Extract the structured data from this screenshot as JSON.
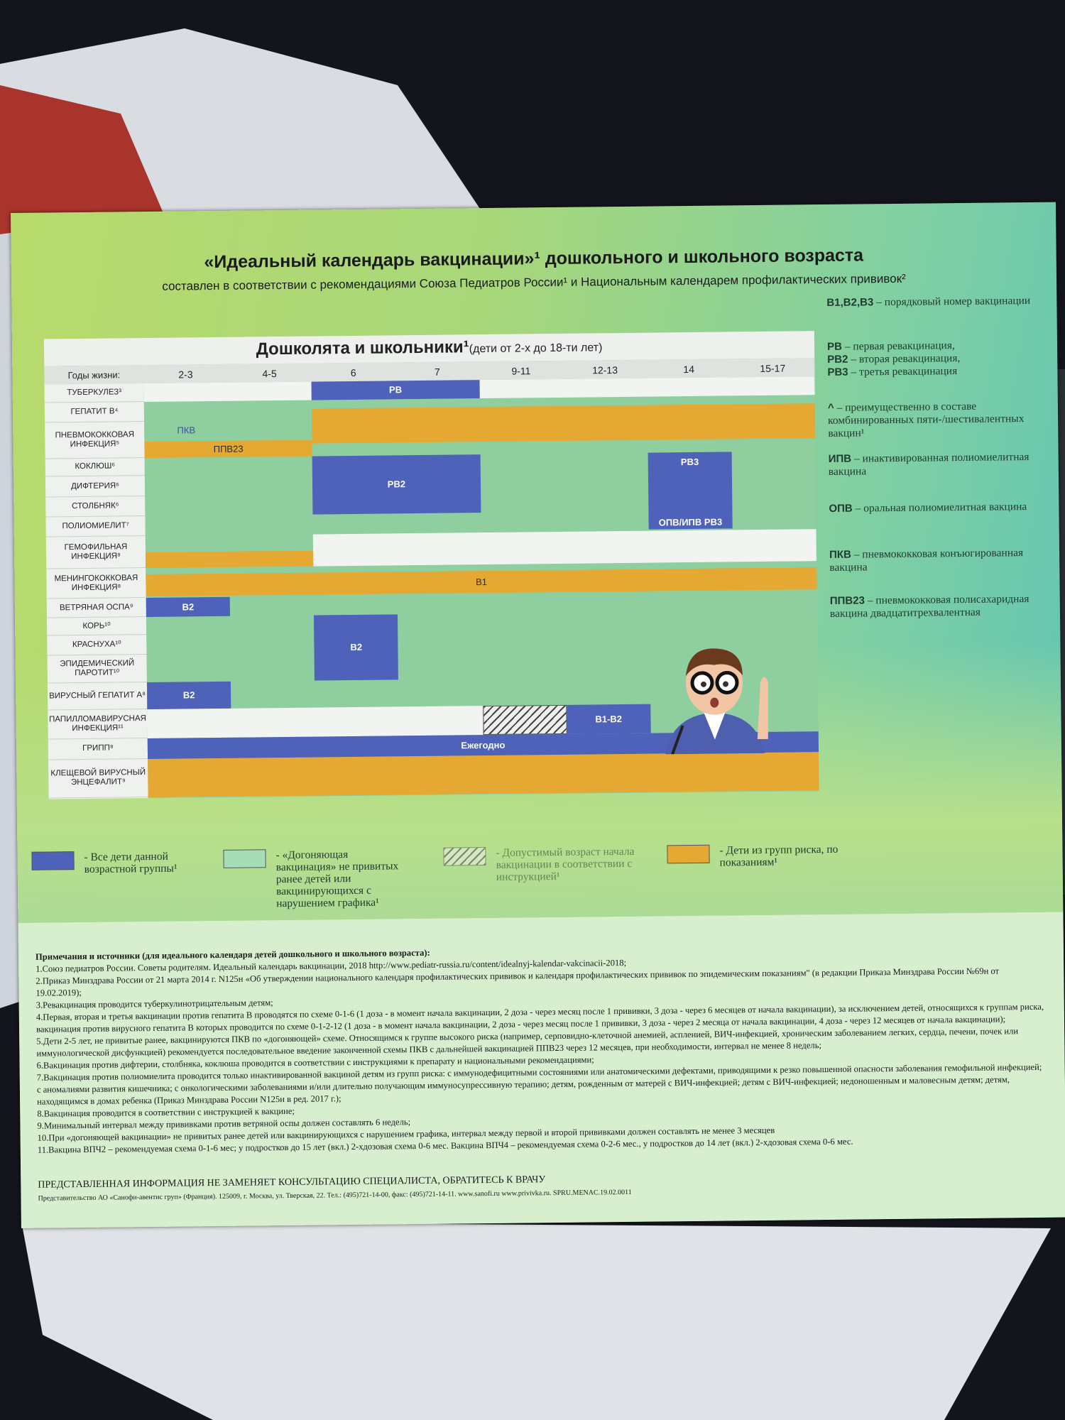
{
  "header": {
    "title": "«Идеальный календарь вакцинации»¹ дошкольного и школьного возраста",
    "subtitle": "составлен в соответствии с рекомендациями Союза Педиатров России¹ и Национальным календарем профилактических прививок²"
  },
  "table": {
    "heading": "Дошколята и школьники¹",
    "heading_note": "(дети от 2-х до 18-ти лет)",
    "age_label": "Годы жизни:",
    "ages": [
      "2-3",
      "4-5",
      "6",
      "7",
      "9-11",
      "12-13",
      "14",
      "15-17"
    ],
    "rows": [
      "ТУБЕРКУЛЕЗ³",
      "ГЕПАТИТ В⁴",
      "ПНЕВМОКОККОВАЯ ИНФЕКЦИЯ⁵",
      "КОКЛЮШ⁶",
      "ДИФТЕРИЯ⁶",
      "СТОЛБНЯК⁶",
      "ПОЛИОМИЕЛИТ⁷",
      "ГЕМОФИЛЬНАЯ ИНФЕКЦИЯ⁸",
      "МЕНИНГОКОККОВАЯ ИНФЕКЦИЯ⁸",
      "ВЕТРЯНАЯ ОСПА⁹",
      "КОРЬ¹⁰",
      "КРАСНУХА¹⁰",
      "ЭПИДЕМИЧЕСКИЙ ПАРОТИТ¹⁰",
      "ВИРУСНЫЙ ГЕПАТИТ А⁸",
      "ПАПИЛЛОМАВИРУСНАЯ ИНФЕКЦИЯ¹¹",
      "ГРИПП⁸",
      "КЛЕЩЕВОЙ ВИРУСНЫЙ ЭНЦЕФАЛИТ⁹"
    ],
    "bars": [
      "РВ",
      "ПКВ",
      "ППВ23",
      "РВ2",
      "РВ3",
      "ОПВ/ИПВ РВ3",
      "В1",
      "В2",
      "В2",
      "В2",
      "В1-В2",
      "Ежегодно"
    ]
  },
  "side_legend": [
    {
      "term": "В1,В2,В3",
      "desc": " – порядковый номер вакцинации"
    },
    {
      "term": "РВ",
      "desc": " – первая ревакцинация,"
    },
    {
      "term": "РВ2",
      "desc": " – вторая ревакцинация,"
    },
    {
      "term": "РВ3",
      "desc": " – третья ревакцинация"
    },
    {
      "term": "^",
      "desc": " – преимущественно в составе комбинированных пяти-/шестивалентных вакцин¹"
    },
    {
      "term": "ИПВ",
      "desc": " – инактивированная полиомиелитная вакцина"
    },
    {
      "term": "ОПВ",
      "desc": " – оральная полиомиелитная вакцина"
    },
    {
      "term": "ПКВ",
      "desc": " – пневмококковая конъюгированная вакцина"
    },
    {
      "term": "ППВ23",
      "desc": " – пневмококковая полисахаридная вакцина двадцатитрехвалентная"
    }
  ],
  "legend": [
    "- Все дети данной возрастной группы¹",
    "- «Догоняющая вакцинация» не привитых ранее детей или вакцинирующихся с нарушением графика¹",
    "- Допустимый возраст начала вакцинации в соответствии с инструкцией¹",
    "- Дети из групп риска, по показаниям¹"
  ],
  "notes": {
    "title": "Примечания и источники (для идеального календаря детей дошкольного и школьного возраста):",
    "items": [
      "1.Союз педиатров России. Советы родителям. Идеальный календарь вакцинации, 2018 http://www.pediatr-russia.ru/content/idealnyj-kalendar-vakcinacii-2018;",
      "2.Приказ Минздрава России от 21 марта 2014 г. N125н «Об утверждении национального календаря профилактических прививок и календаря профилактических прививок по эпидемическим показаниям\" (в редакции Приказа Минздрава России №69н от 19.02.2019);",
      "3.Ревакцинация проводится туберкулинотрицательным детям;",
      "4.Первая, вторая и третья вакцинации против гепатита В проводятся по схеме 0-1-6 (1 доза - в момент начала вакцинации, 2 доза - через месяц после 1 прививки, 3 доза - через 6 месяцев от начала вакцинации), за исключением детей, относящихся к группам риска, вакцинация против вирусного гепатита В которых проводится по схеме 0-1-2-12 (1 доза - в момент начала вакцинации, 2 доза - через месяц после 1 прививки, 3 доза - через 2 месяца от начала вакцинации, 4 доза - через 12 месяцев от начала вакцинации);",
      "5.Дети 2-5 лет, не привитые ранее, вакцинируются ПКВ по «догоняющей» схеме. Относящимся к группе высокого риска (например, серповидно-клеточной анемией, аспленией, ВИЧ-инфекцией, хроническим заболеванием легких, сердца, печени, почек или иммунологической дисфункцией) рекомендуется последовательное введение законченной схемы ПКВ с дальнейшей вакцинацией ППВ23 через 12 месяцев, при необходимости, интервал не менее 8 недель;",
      "6.Вакцинация против дифтерии, столбняка, коклюша проводится в соответствии с инструкциями к препарату и национальными рекомендациями;",
      "7.Вакцинация против полиомиелита проводится только инактивированной вакциной детям из групп риска: с иммунодефицитными состояниями или анатомическими дефектами, приводящими к резко повышенной опасности заболевания гемофильной инфекцией; с аномалиями развития кишечника; с онкологическими заболеваниями и/или длительно получающим иммуносупрессивную терапию; детям, рожденным от матерей с ВИЧ-инфекцией; детям с ВИЧ-инфекцией; недоношенным и маловесным детям; детям, находящимся в домах ребенка (Приказ Минздрава России N125н в ред. 2017 г.);",
      "8.Вакцинация проводится в соответствии с инструкцией к вакцине;",
      "9.Минимальный интервал между прививками против ветряной оспы должен составлять 6 недель;",
      "10.При «догоняющей вакцинации» не привитых ранее детей или вакцинирующихся с нарушением графика, интервал между первой и второй прививками должен составлять не менее 3 месяцев",
      "11.Вакцина ВПЧ2 – рекомендуемая схема 0-1-6 мес; у подростков до 15 лет (вкл.) 2-хдозовая схема 0-6 мес. Вакцина ВПЧ4 – рекомендуемая схема 0-2-6 мес., у подростков до 14 лет (вкл.) 2-хдозовая схема 0-6 мес."
    ]
  },
  "footer": {
    "disclaimer": "ПРЕДСТАВЛЕННАЯ ИНФОРМАЦИЯ НЕ ЗАМЕНЯЕТ КОНСУЛЬТАЦИЮ СПЕЦИАЛИСТА, ОБРАТИТЕСЬ К ВРАЧУ",
    "address": "Представительство АО «Санофи-авентис груп» (Франция). 125009, г. Москва, ул. Тверская, 22. Тел.: (495)721-14-00, факс: (495)721-14-11. www.sanofi.ru www.privivka.ru. SPRU.MENAC.19.02.0011"
  }
}
